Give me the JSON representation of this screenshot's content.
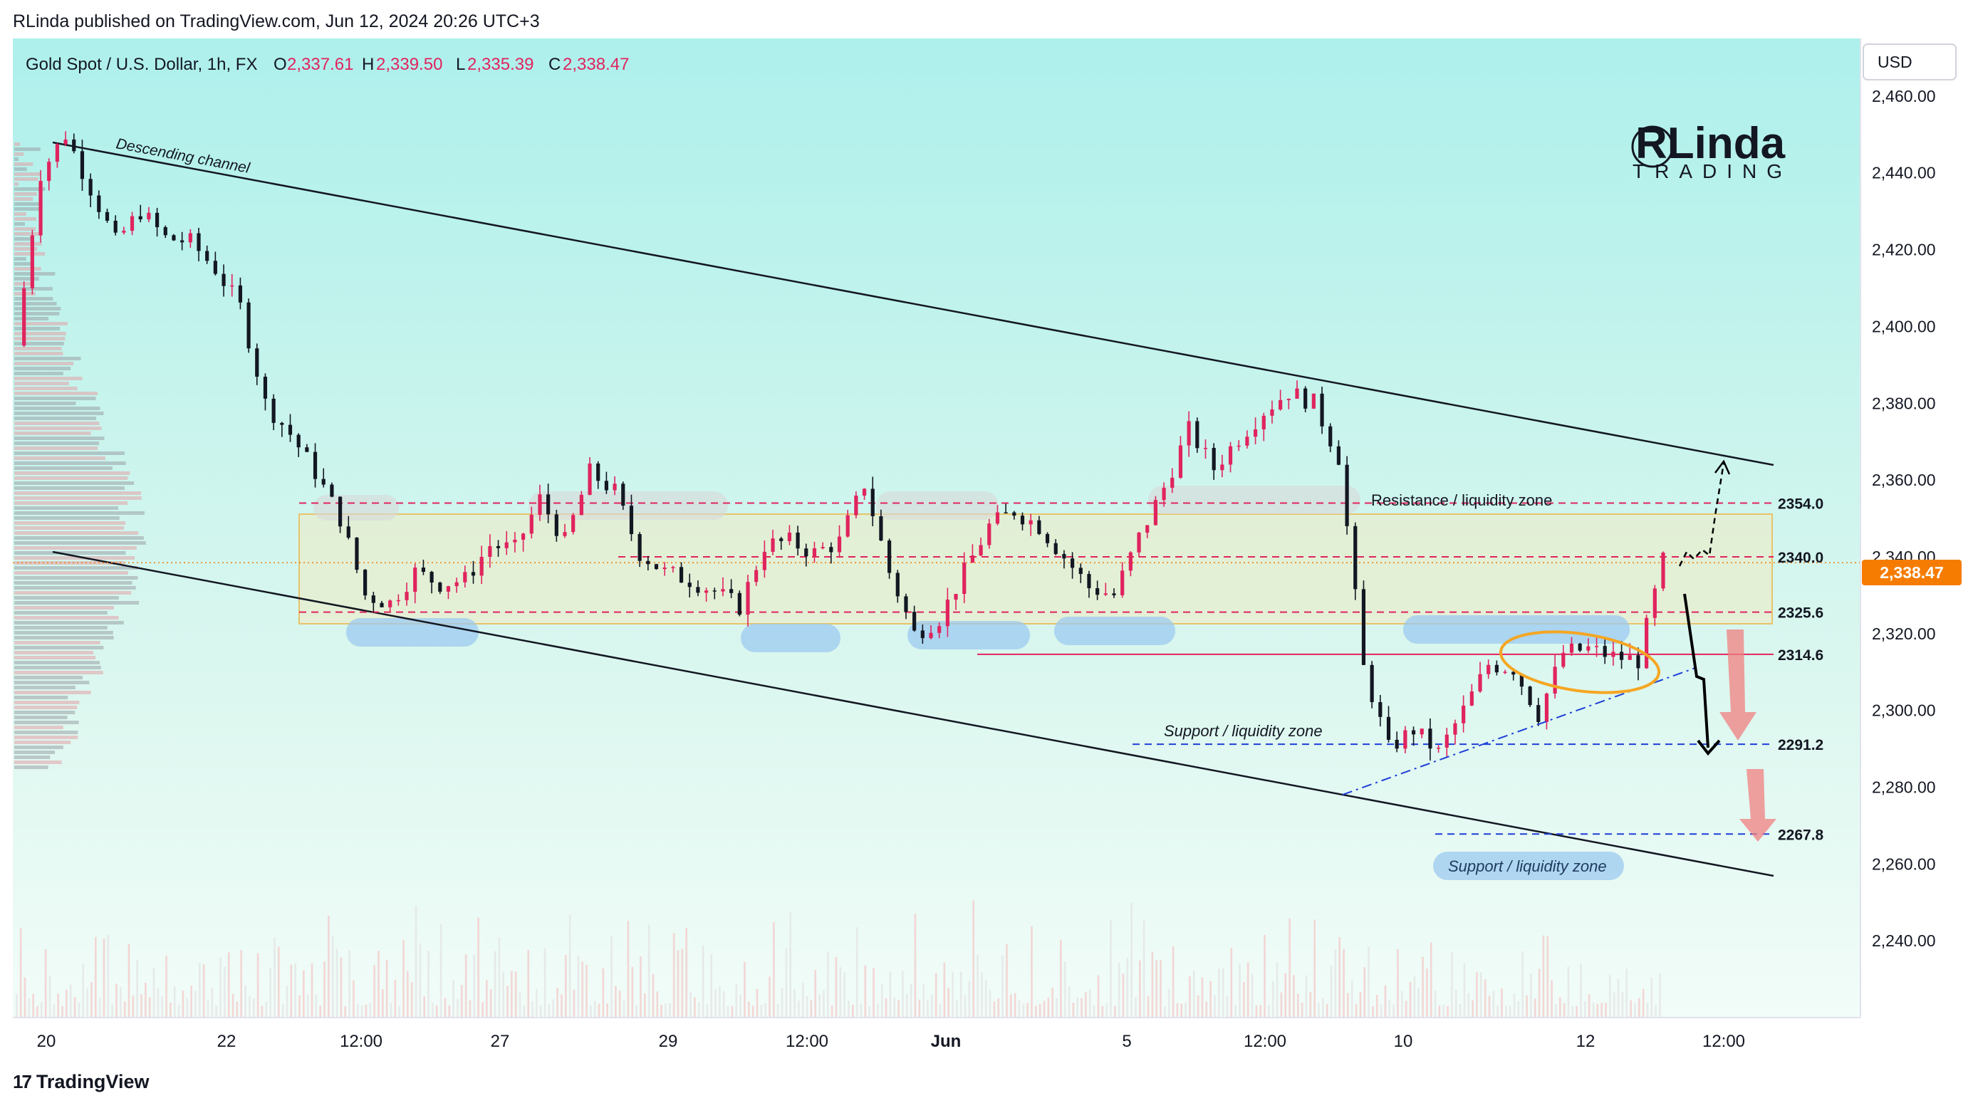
{
  "header": {
    "publisher": "RLinda published on TradingView.com, Jun 12, 2024 20:26 UTC+3"
  },
  "legend": {
    "symbol": "Gold Spot / U.S. Dollar, 1h, FX",
    "o_label": "O",
    "o": "2,337.61",
    "h_label": "H",
    "h": "2,339.50",
    "l_label": "L",
    "l": "2,335.39",
    "c_label": "C",
    "c": "2,338.47"
  },
  "currency": "USD",
  "brand": {
    "main": "RLinda",
    "sub": "TRADING"
  },
  "footer": {
    "brand": "TradingView"
  },
  "colors": {
    "up": "#e0245e",
    "down": "#131722",
    "level": "#e0245e",
    "support": "#1e3fd9",
    "price_tag": "#f57c00"
  },
  "chart_data": {
    "type": "candlestick",
    "timeframe": "1h",
    "ylim": [
      2220,
      2475
    ],
    "yticks": [
      "2,460.00",
      "2,440.00",
      "2,420.00",
      "2,400.00",
      "2,380.00",
      "2,360.00",
      "2,340.00",
      "2,320.00",
      "2,300.00",
      "2,280.00",
      "2,260.00",
      "2,240.00"
    ],
    "xticks": [
      "20",
      "22",
      "12:00",
      "27",
      "29",
      "12:00",
      "Jun",
      "5",
      "12:00",
      "10",
      "12",
      "12:00"
    ],
    "last_price": "2,338.47",
    "levels": [
      {
        "value": 2354.0,
        "label": "2354.0",
        "style": "dashed-red"
      },
      {
        "value": 2340.0,
        "label": "2340.0",
        "style": "dashed-red"
      },
      {
        "value": 2325.6,
        "label": "2325.6",
        "style": "dashed-red"
      },
      {
        "value": 2314.6,
        "label": "2314.6",
        "style": "solid-red"
      },
      {
        "value": 2291.2,
        "label": "2291.2",
        "style": "dashed-blue"
      },
      {
        "value": 2267.8,
        "label": "2267.8",
        "style": "dashed-blue"
      }
    ],
    "annotations": [
      "Descending channel",
      "Resistance / liquidity zone",
      "Support / liquidity zone",
      "Support / liquidity zone"
    ],
    "path_points": [
      [
        0,
        2395
      ],
      [
        3,
        2440
      ],
      [
        6,
        2450
      ],
      [
        9,
        2436
      ],
      [
        12,
        2422
      ],
      [
        15,
        2430
      ],
      [
        18,
        2423
      ],
      [
        21,
        2422
      ],
      [
        24,
        2415
      ],
      [
        27,
        2405
      ],
      [
        30,
        2380
      ],
      [
        33,
        2372
      ],
      [
        36,
        2362
      ],
      [
        39,
        2350
      ],
      [
        42,
        2330
      ],
      [
        45,
        2328
      ],
      [
        48,
        2336
      ],
      [
        51,
        2333
      ],
      [
        54,
        2334
      ],
      [
        57,
        2343
      ],
      [
        60,
        2342
      ],
      [
        63,
        2355
      ],
      [
        66,
        2344
      ],
      [
        69,
        2362
      ],
      [
        72,
        2357
      ],
      [
        75,
        2341
      ],
      [
        78,
        2336
      ],
      [
        81,
        2334
      ],
      [
        84,
        2331
      ],
      [
        87,
        2327
      ],
      [
        90,
        2343
      ],
      [
        93,
        2344
      ],
      [
        96,
        2341
      ],
      [
        99,
        2344
      ],
      [
        102,
        2359
      ],
      [
        105,
        2336
      ],
      [
        108,
        2320
      ],
      [
        111,
        2324
      ],
      [
        114,
        2336
      ],
      [
        117,
        2348
      ],
      [
        120,
        2352
      ],
      [
        123,
        2348
      ],
      [
        126,
        2340
      ],
      [
        129,
        2332
      ],
      [
        132,
        2330
      ],
      [
        135,
        2345
      ],
      [
        138,
        2358
      ],
      [
        141,
        2373
      ],
      [
        144,
        2363
      ],
      [
        147,
        2371
      ],
      [
        150,
        2378
      ],
      [
        153,
        2383
      ],
      [
        156,
        2380
      ],
      [
        159,
        2366
      ],
      [
        162,
        2311
      ],
      [
        165,
        2290
      ],
      [
        168,
        2295
      ],
      [
        171,
        2289
      ],
      [
        174,
        2300
      ],
      [
        177,
        2312
      ],
      [
        180,
        2311
      ],
      [
        183,
        2299
      ],
      [
        186,
        2315
      ],
      [
        189,
        2316
      ],
      [
        192,
        2314
      ],
      [
        195,
        2313
      ],
      [
        198,
        2339
      ]
    ]
  }
}
